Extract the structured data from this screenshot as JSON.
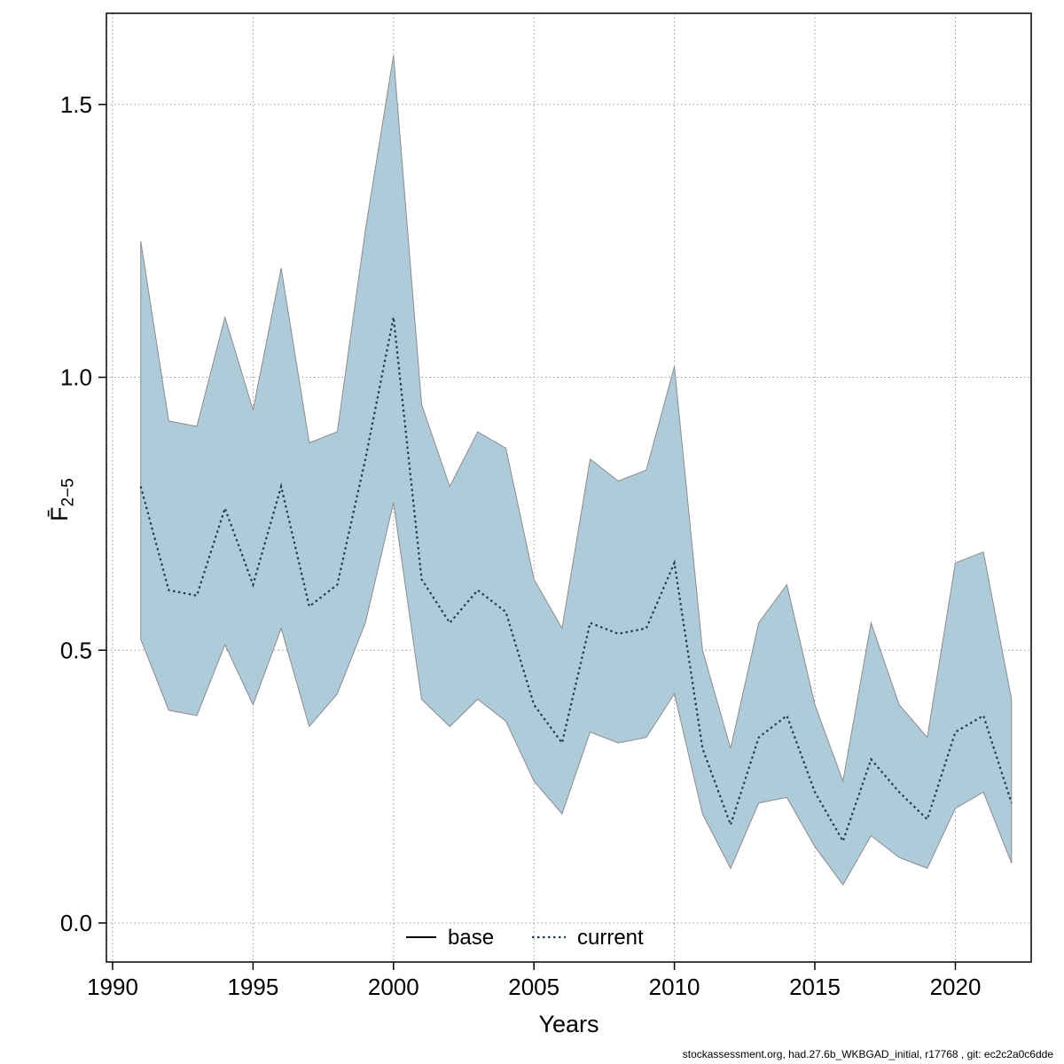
{
  "page": {
    "footer": "stockassessment.org, had.27.6b_WKBGAD_initial, r17768 , git: ec2c2a0c6dde"
  },
  "chart_data": {
    "type": "line",
    "title": "",
    "xlabel": "Years",
    "ylabel": "F2-5",
    "ylabel_f": "F̄",
    "ylabel_sub": "2−5",
    "grid": true,
    "legend_position": "bottom-center-inside",
    "xlim": [
      1989.78,
      2022.7
    ],
    "ylim": [
      -0.0715,
      1.667
    ],
    "xticks": [
      1990,
      1995,
      2000,
      2005,
      2010,
      2015,
      2020
    ],
    "yticks": [
      0.0,
      0.5,
      1.0,
      1.5
    ],
    "ytick_labels": [
      "0.0",
      "0.5",
      "1.0",
      "1.5"
    ],
    "x": [
      1991,
      1992,
      1993,
      1994,
      1995,
      1996,
      1997,
      1998,
      1999,
      2000,
      2001,
      2002,
      2003,
      2004,
      2005,
      2006,
      2007,
      2008,
      2009,
      2010,
      2011,
      2012,
      2013,
      2014,
      2015,
      2016,
      2017,
      2018,
      2019,
      2020,
      2021,
      2022
    ],
    "series": [
      {
        "name": "current",
        "style": "dotted",
        "color": "#1b3c50",
        "values": [
          0.8,
          0.61,
          0.6,
          0.76,
          0.62,
          0.8,
          0.58,
          0.62,
          0.85,
          1.11,
          0.63,
          0.55,
          0.61,
          0.57,
          0.4,
          0.33,
          0.55,
          0.53,
          0.54,
          0.66,
          0.32,
          0.18,
          0.34,
          0.38,
          0.24,
          0.15,
          0.3,
          0.24,
          0.19,
          0.35,
          0.38,
          0.22
        ]
      }
    ],
    "band": {
      "name": "confidence-interval",
      "fill": "#aecbd9",
      "edge": "#8c8c8c",
      "upper": [
        1.25,
        0.92,
        0.91,
        1.11,
        0.94,
        1.2,
        0.88,
        0.9,
        1.27,
        1.59,
        0.95,
        0.8,
        0.9,
        0.87,
        0.63,
        0.54,
        0.85,
        0.81,
        0.83,
        1.02,
        0.5,
        0.32,
        0.55,
        0.62,
        0.4,
        0.26,
        0.55,
        0.4,
        0.34,
        0.66,
        0.68,
        0.41
      ],
      "lower": [
        0.52,
        0.39,
        0.38,
        0.51,
        0.4,
        0.54,
        0.36,
        0.42,
        0.55,
        0.77,
        0.41,
        0.36,
        0.41,
        0.37,
        0.26,
        0.2,
        0.35,
        0.33,
        0.34,
        0.42,
        0.2,
        0.1,
        0.22,
        0.23,
        0.14,
        0.07,
        0.16,
        0.12,
        0.1,
        0.21,
        0.24,
        0.11
      ]
    },
    "legend": [
      {
        "label": "base",
        "style": "solid",
        "color": "#000000"
      },
      {
        "label": "current",
        "style": "dotted",
        "color": "#1b3c50"
      }
    ]
  }
}
